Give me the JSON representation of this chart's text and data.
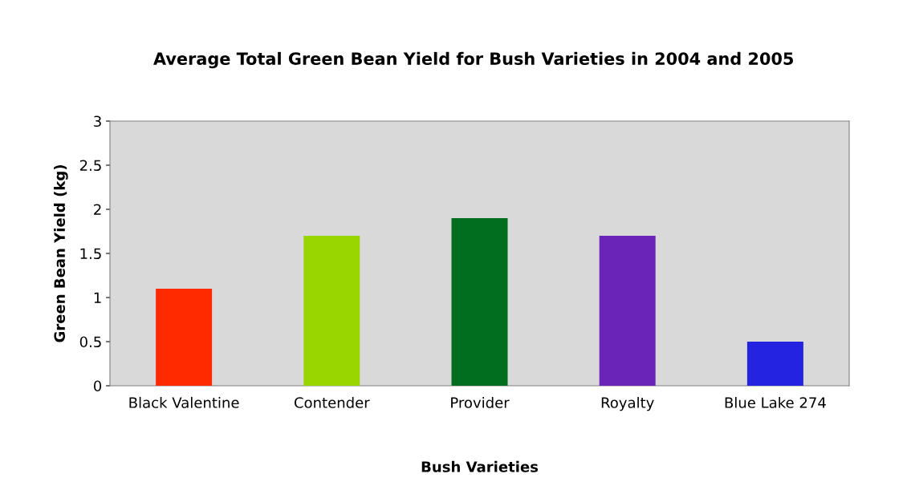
{
  "chart_data": {
    "type": "bar",
    "title": "Average Total Green Bean Yield for Bush Varieties in 2004 and 2005",
    "xlabel": "Bush Varieties",
    "ylabel": "Green Bean Yield (kg)",
    "categories": [
      "Black Valentine",
      "Contender",
      "Provider",
      "Royalty",
      "Blue Lake 274"
    ],
    "values": [
      1.1,
      1.7,
      1.9,
      1.7,
      0.5
    ],
    "colors": [
      "#ff2a00",
      "#99d600",
      "#006e1e",
      "#6a24b8",
      "#2424e0"
    ],
    "ylim": [
      0,
      3
    ],
    "yticks": [
      0,
      0.5,
      1,
      1.5,
      2,
      2.5,
      3
    ],
    "grid": false
  }
}
